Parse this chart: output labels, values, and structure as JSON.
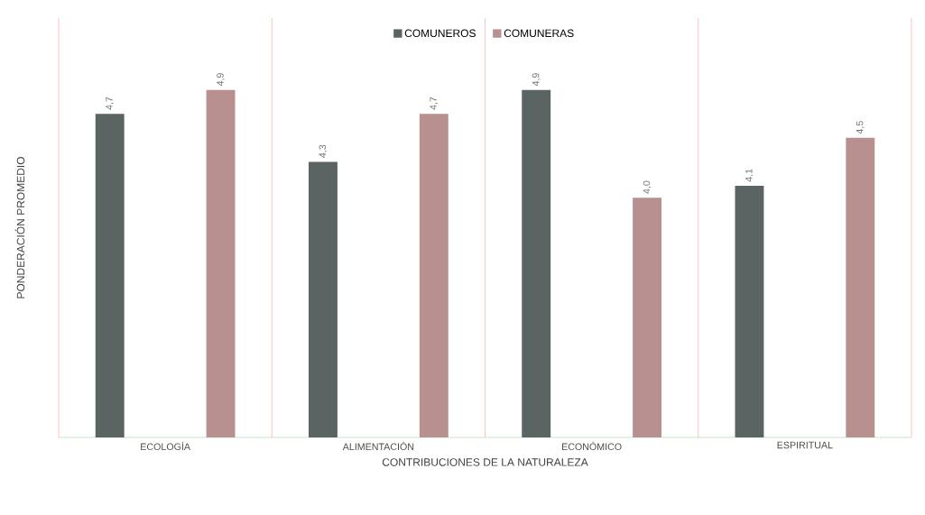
{
  "chart_data": {
    "type": "bar",
    "xlabel": "CONTRIBUCIONES DE LA NATURALEZA",
    "ylabel": "PONDERACIÓN PROMEDIO",
    "categories": [
      "ECOLOGÍA",
      "ALIMENTACIÓN",
      "ECONÓMICO",
      "ESPIRITUAL"
    ],
    "series": [
      {
        "name": "COMUNEROS",
        "color": "#5a6462",
        "values": [
          4.7,
          4.3,
          4.9,
          4.1
        ],
        "value_labels": [
          "4,7",
          "4,3",
          "4,9",
          "4,1"
        ]
      },
      {
        "name": "COMUNERAS",
        "color": "#b89090",
        "values": [
          4.9,
          4.7,
          4.0,
          4.5
        ],
        "value_labels": [
          "4,9",
          "4,7",
          "4,0",
          "4,5"
        ]
      }
    ],
    "ylim": [
      2,
      5.5
    ],
    "tick_labels": "x",
    "grid": "x",
    "legend": "top"
  }
}
